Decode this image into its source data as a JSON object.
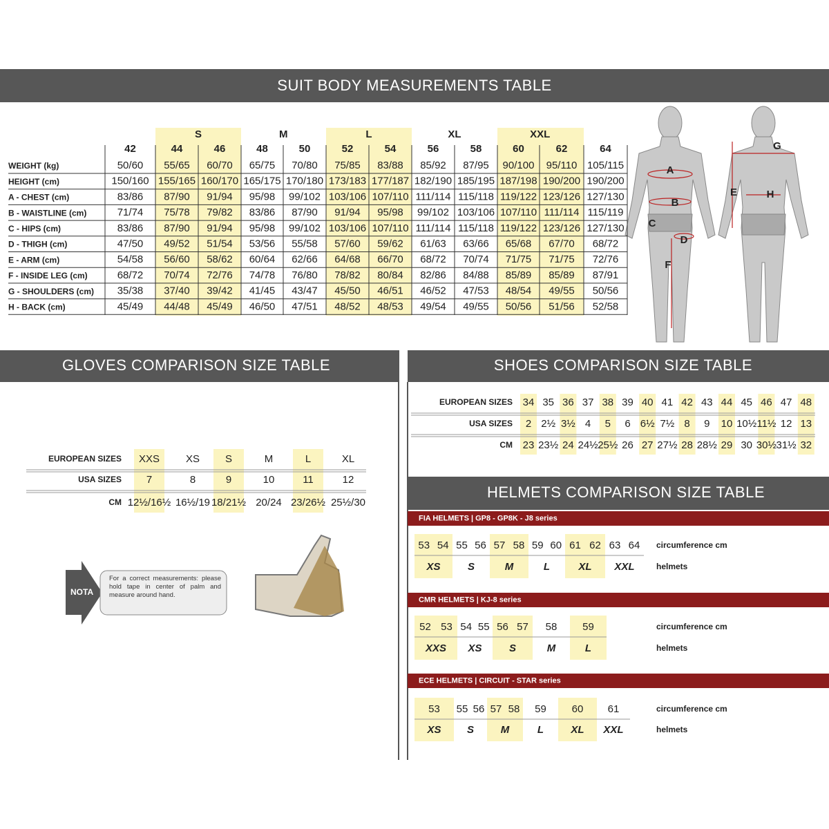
{
  "suit": {
    "title": "SUIT BODY MEASUREMENTS TABLE",
    "groups": [
      "S",
      "M",
      "L",
      "XL",
      "XXL"
    ],
    "columns": [
      "42",
      "44",
      "46",
      "48",
      "50",
      "52",
      "54",
      "56",
      "58",
      "60",
      "62",
      "64"
    ],
    "rows": [
      {
        "label": "WEIGHT (kg)",
        "values": [
          "50/60",
          "55/65",
          "60/70",
          "65/75",
          "70/80",
          "75/85",
          "83/88",
          "85/92",
          "87/95",
          "90/100",
          "95/110",
          "105/115"
        ]
      },
      {
        "label": "HEIGHT (cm)",
        "values": [
          "150/160",
          "155/165",
          "160/170",
          "165/175",
          "170/180",
          "173/183",
          "177/187",
          "182/190",
          "185/195",
          "187/198",
          "190/200",
          "190/200"
        ]
      },
      {
        "label": "A - CHEST (cm)",
        "values": [
          "83/86",
          "87/90",
          "91/94",
          "95/98",
          "99/102",
          "103/106",
          "107/110",
          "111/114",
          "115/118",
          "119/122",
          "123/126",
          "127/130"
        ]
      },
      {
        "label": "B - WAISTLINE (cm)",
        "values": [
          "71/74",
          "75/78",
          "79/82",
          "83/86",
          "87/90",
          "91/94",
          "95/98",
          "99/102",
          "103/106",
          "107/110",
          "111/114",
          "115/119"
        ]
      },
      {
        "label": "C - HIPS (cm)",
        "values": [
          "83/86",
          "87/90",
          "91/94",
          "95/98",
          "99/102",
          "103/106",
          "107/110",
          "111/114",
          "115/118",
          "119/122",
          "123/126",
          "127/130"
        ]
      },
      {
        "label": "D - THIGH (cm)",
        "values": [
          "47/50",
          "49/52",
          "51/54",
          "53/56",
          "55/58",
          "57/60",
          "59/62",
          "61/63",
          "63/66",
          "65/68",
          "67/70",
          "68/72"
        ]
      },
      {
        "label": "E - ARM (cm)",
        "values": [
          "54/58",
          "56/60",
          "58/62",
          "60/64",
          "62/66",
          "64/68",
          "66/70",
          "68/72",
          "70/74",
          "71/75",
          "71/75",
          "72/76"
        ]
      },
      {
        "label": "F - INSIDE LEG (cm)",
        "values": [
          "68/72",
          "70/74",
          "72/76",
          "74/78",
          "76/80",
          "78/82",
          "80/84",
          "82/86",
          "84/88",
          "85/89",
          "85/89",
          "87/91"
        ]
      },
      {
        "label": "G - SHOULDERS (cm)",
        "values": [
          "35/38",
          "37/40",
          "39/42",
          "41/45",
          "43/47",
          "45/50",
          "46/51",
          "46/52",
          "47/53",
          "48/54",
          "49/55",
          "50/56"
        ]
      },
      {
        "label": "H - BACK (cm)",
        "values": [
          "45/49",
          "44/48",
          "45/49",
          "46/50",
          "47/51",
          "48/52",
          "48/53",
          "49/54",
          "49/55",
          "50/56",
          "51/56",
          "52/58"
        ]
      }
    ]
  },
  "figure": {
    "labels": [
      "A",
      "B",
      "C",
      "D",
      "E",
      "F",
      "G",
      "H"
    ]
  },
  "gloves": {
    "title": "GLOVES COMPARISON SIZE TABLE",
    "rows": [
      {
        "label": "EUROPEAN SIZES",
        "values": [
          "XXS",
          "XS",
          "S",
          "M",
          "L",
          "XL"
        ]
      },
      {
        "label": "USA SIZES",
        "values": [
          "7",
          "8",
          "9",
          "10",
          "11",
          "12"
        ]
      },
      {
        "label": "CM",
        "values": [
          "12½/16½",
          "16½/19",
          "18/21½",
          "20/24",
          "23/26½",
          "25½/30"
        ]
      }
    ],
    "note_tag": "NOTA",
    "note": "For a correct measurements: please hold tape in center of palm and measure around hand."
  },
  "shoes": {
    "title": "SHOES COMPARISON SIZE TABLE",
    "rows": [
      {
        "label": "EUROPEAN SIZES",
        "values": [
          "34",
          "35",
          "36",
          "37",
          "38",
          "39",
          "40",
          "41",
          "42",
          "43",
          "44",
          "45",
          "46",
          "47",
          "48"
        ]
      },
      {
        "label": "USA SIZES",
        "values": [
          "2",
          "2½",
          "3½",
          "4",
          "5",
          "6",
          "6½",
          "7½",
          "8",
          "9",
          "10",
          "10½",
          "11½",
          "12",
          "13"
        ]
      },
      {
        "label": "CM",
        "values": [
          "23",
          "23½",
          "24",
          "24½",
          "25½",
          "26",
          "27",
          "27½",
          "28",
          "28½",
          "29",
          "30",
          "30½",
          "31½",
          "32"
        ]
      }
    ]
  },
  "helmets": {
    "title": "HELMETS COMPARISON SIZE TABLE",
    "tables": [
      {
        "title": "FIA HELMETS | GP8 - GP8K - J8 series",
        "circumference_label": "circumference cm",
        "sizes_label": "helmets",
        "sizes": [
          {
            "size": "XS",
            "circumference": [
              53,
              54
            ]
          },
          {
            "size": "S",
            "circumference": [
              55,
              56
            ]
          },
          {
            "size": "M",
            "circumference": [
              57,
              58
            ]
          },
          {
            "size": "L",
            "circumference": [
              59,
              60
            ]
          },
          {
            "size": "XL",
            "circumference": [
              61,
              62
            ]
          },
          {
            "size": "XXL",
            "circumference": [
              63,
              64
            ]
          }
        ]
      },
      {
        "title": "CMR HELMETS | KJ-8 series",
        "circumference_label": "circumference cm",
        "sizes_label": "helmets",
        "sizes": [
          {
            "size": "XXS",
            "circumference": [
              52,
              53
            ]
          },
          {
            "size": "XS",
            "circumference": [
              54,
              55
            ]
          },
          {
            "size": "S",
            "circumference": [
              56,
              57
            ]
          },
          {
            "size": "M",
            "circumference": [
              58
            ]
          },
          {
            "size": "L",
            "circumference": [
              59
            ]
          }
        ]
      },
      {
        "title": "ECE HELMETS | CIRCUIT - STAR series",
        "circumference_label": "circumference cm",
        "sizes_label": "helmets",
        "sizes": [
          {
            "size": "XS",
            "circumference": [
              53
            ]
          },
          {
            "size": "S",
            "circumference": [
              55,
              56
            ]
          },
          {
            "size": "M",
            "circumference": [
              57,
              58
            ]
          },
          {
            "size": "L",
            "circumference": [
              59
            ]
          },
          {
            "size": "XL",
            "circumference": [
              60
            ]
          },
          {
            "size": "XXL",
            "circumference": [
              61
            ]
          }
        ]
      }
    ]
  }
}
